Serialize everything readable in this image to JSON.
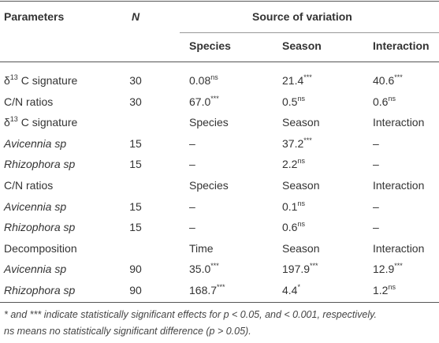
{
  "header": {
    "parameters": "Parameters",
    "n": "N",
    "source": "Source of variation",
    "sub": [
      "Species",
      "Season",
      "Interaction"
    ]
  },
  "rows": [
    {
      "param": [
        {
          "text": "δ"
        },
        {
          "sup": "13"
        },
        {
          "text": " C signature"
        }
      ],
      "n": 30,
      "cells": [
        [
          {
            "text": "0.08"
          },
          {
            "sup": "ns"
          }
        ],
        [
          {
            "text": "21.4"
          },
          {
            "sup": "***"
          }
        ],
        [
          {
            "text": "40.6"
          },
          {
            "sup": "***"
          }
        ]
      ]
    },
    {
      "param": [
        {
          "text": "C/N ratios"
        }
      ],
      "n": 30,
      "cells": [
        [
          {
            "text": "67.0"
          },
          {
            "sup": "***"
          }
        ],
        [
          {
            "text": "0.5"
          },
          {
            "sup": "ns"
          }
        ],
        [
          {
            "text": "0.6"
          },
          {
            "sup": "ns"
          }
        ]
      ]
    },
    {
      "param": [
        {
          "text": "δ"
        },
        {
          "sup": "13"
        },
        {
          "text": " C signature"
        }
      ],
      "cells": [
        [
          {
            "text": "Species"
          }
        ],
        [
          {
            "text": "Season"
          }
        ],
        [
          {
            "text": "Interaction"
          }
        ]
      ]
    },
    {
      "param": [
        {
          "text": "Avicennia sp"
        }
      ],
      "italic": true,
      "n": 15,
      "cells": [
        [
          {
            "text": "–"
          }
        ],
        [
          {
            "text": "37.2"
          },
          {
            "sup": "***"
          }
        ],
        [
          {
            "text": "–"
          }
        ]
      ]
    },
    {
      "param": [
        {
          "text": "Rhizophora sp"
        }
      ],
      "italic": true,
      "n": 15,
      "cells": [
        [
          {
            "text": "–"
          }
        ],
        [
          {
            "text": "2.2"
          },
          {
            "sup": "ns"
          }
        ],
        [
          {
            "text": "–"
          }
        ]
      ]
    },
    {
      "param": [
        {
          "text": "C/N ratios"
        }
      ],
      "cells": [
        [
          {
            "text": "Species"
          }
        ],
        [
          {
            "text": "Season"
          }
        ],
        [
          {
            "text": "Interaction"
          }
        ]
      ]
    },
    {
      "param": [
        {
          "text": "Avicennia sp"
        }
      ],
      "italic": true,
      "n": 15,
      "cells": [
        [
          {
            "text": "–"
          }
        ],
        [
          {
            "text": "0.1"
          },
          {
            "sup": "ns"
          }
        ],
        [
          {
            "text": "–"
          }
        ]
      ]
    },
    {
      "param": [
        {
          "text": "Rhizophora sp"
        }
      ],
      "italic": true,
      "n": 15,
      "cells": [
        [
          {
            "text": "–"
          }
        ],
        [
          {
            "text": "0.6"
          },
          {
            "sup": "ns"
          }
        ],
        [
          {
            "text": "–"
          }
        ]
      ]
    },
    {
      "param": [
        {
          "text": "Decomposition"
        }
      ],
      "cells": [
        [
          {
            "text": "Time"
          }
        ],
        [
          {
            "text": "Season"
          }
        ],
        [
          {
            "text": "Interaction"
          }
        ]
      ]
    },
    {
      "param": [
        {
          "text": "Avicennia sp"
        }
      ],
      "italic": true,
      "n": 90,
      "cells": [
        [
          {
            "text": "35.0"
          },
          {
            "sup": "***"
          }
        ],
        [
          {
            "text": "197.9"
          },
          {
            "sup": "***"
          }
        ],
        [
          {
            "text": "12.9"
          },
          {
            "sup": "***"
          }
        ]
      ]
    },
    {
      "param": [
        {
          "text": "Rhizophora sp"
        }
      ],
      "italic": true,
      "n": 90,
      "cells": [
        [
          {
            "text": "168.7"
          },
          {
            "sup": "***"
          }
        ],
        [
          {
            "text": "4.4"
          },
          {
            "sup": "*"
          }
        ],
        [
          {
            "text": "1.2"
          },
          {
            "sup": "ns"
          }
        ]
      ]
    }
  ],
  "footnote": [
    "* and *** indicate statistically significant effects for p < 0.05, and < 0.001, respectively.",
    "ns means no statistically significant difference (p > 0.05)."
  ]
}
